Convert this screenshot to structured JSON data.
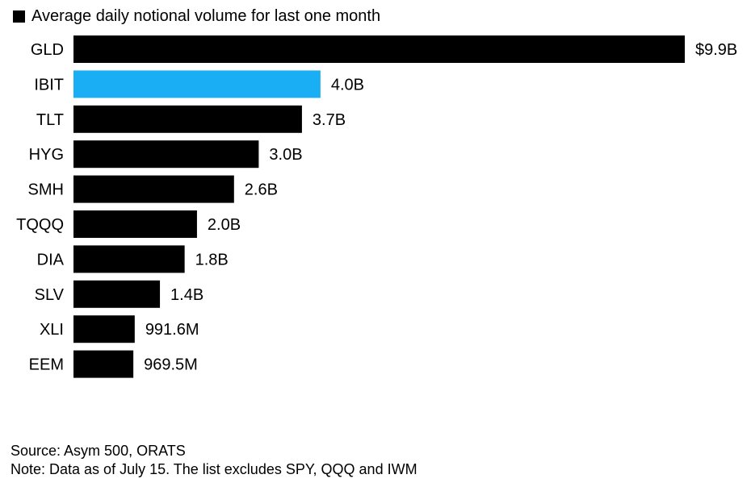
{
  "chart_data": {
    "type": "bar",
    "orientation": "horizontal",
    "legend": {
      "label": "Average daily notional volume for last one month",
      "color": "#000000",
      "placement": "top-left"
    },
    "categories": [
      "GLD",
      "IBIT",
      "TLT",
      "HYG",
      "SMH",
      "TQQQ",
      "DIA",
      "SLV",
      "XLI",
      "EEM"
    ],
    "values": [
      9.9,
      4.0,
      3.7,
      3.0,
      2.6,
      2.0,
      1.8,
      1.4,
      0.9916,
      0.9695
    ],
    "value_labels": [
      "$9.9B",
      "4.0B",
      "3.7B",
      "3.0B",
      "2.6B",
      "2.0B",
      "1.8B",
      "1.4B",
      "991.6M",
      "969.5M"
    ],
    "unit": "billions USD",
    "xlim": [
      0,
      9.9
    ],
    "grid": false,
    "colors": {
      "default": "#000000",
      "highlight": "#1AAEF5"
    },
    "highlight_category": "IBIT"
  },
  "footer": {
    "source": "Source: Asym 500, ORATS",
    "note": "Note: Data as of July 15. The list excludes SPY, QQQ and IWM"
  }
}
